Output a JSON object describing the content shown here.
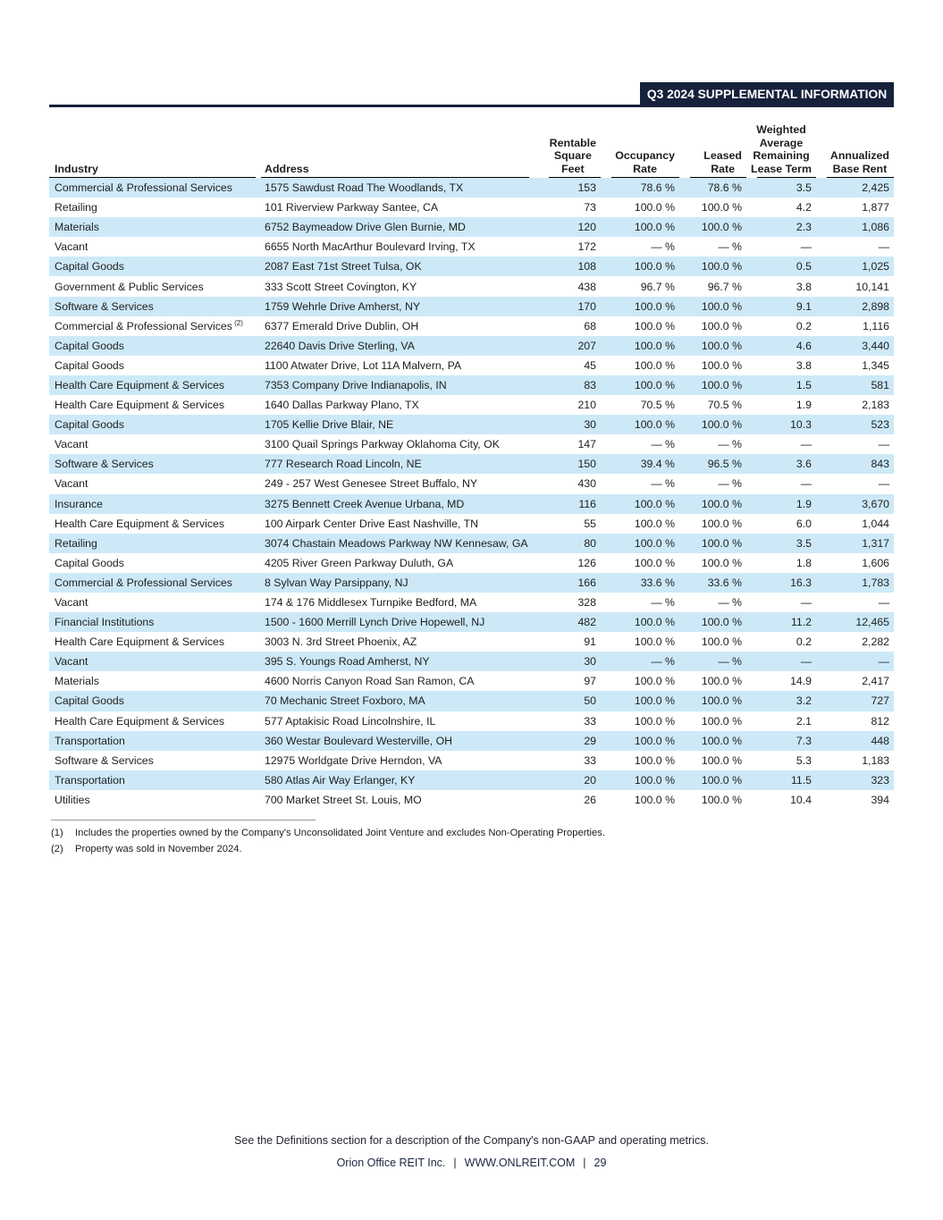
{
  "header": {
    "banner": "Q3 2024 SUPPLEMENTAL INFORMATION"
  },
  "colors": {
    "navy": "#16213c",
    "row_stripe": "#cde9f8"
  },
  "table": {
    "headers": [
      {
        "lines": [
          "Industry"
        ],
        "align": "left"
      },
      {
        "lines": [
          "Address"
        ],
        "align": "left"
      },
      {
        "lines": [
          "Rentable",
          "Square",
          "Feet"
        ],
        "align": "right"
      },
      {
        "lines": [
          "Occupancy",
          "Rate"
        ],
        "align": "right"
      },
      {
        "lines": [
          "Leased",
          "Rate"
        ],
        "align": "right"
      },
      {
        "lines": [
          "Weighted",
          "Average",
          "Remaining",
          "Lease Term"
        ],
        "align": "right"
      },
      {
        "lines": [
          "Annualized",
          "Base Rent"
        ],
        "align": "right"
      }
    ],
    "rows": [
      {
        "industry": "Commercial & Professional Services",
        "sup": "",
        "address": "1575 Sawdust Road The Woodlands, TX",
        "sqft": "153",
        "occupancy": "78.6 %",
        "leased": "78.6 %",
        "walt": "3.5",
        "abr": "2,425"
      },
      {
        "industry": "Retailing",
        "sup": "",
        "address": "101 Riverview Parkway Santee, CA",
        "sqft": "73",
        "occupancy": "100.0 %",
        "leased": "100.0 %",
        "walt": "4.2",
        "abr": "1,877"
      },
      {
        "industry": "Materials",
        "sup": "",
        "address": "6752 Baymeadow Drive Glen Burnie, MD",
        "sqft": "120",
        "occupancy": "100.0 %",
        "leased": "100.0 %",
        "walt": "2.3",
        "abr": "1,086"
      },
      {
        "industry": "Vacant",
        "sup": "",
        "address": "6655 North MacArthur Boulevard Irving, TX",
        "sqft": "172",
        "occupancy": "— %",
        "leased": "— %",
        "walt": "—",
        "abr": "—"
      },
      {
        "industry": "Capital Goods",
        "sup": "",
        "address": "2087 East 71st Street Tulsa, OK",
        "sqft": "108",
        "occupancy": "100.0 %",
        "leased": "100.0 %",
        "walt": "0.5",
        "abr": "1,025"
      },
      {
        "industry": "Government & Public Services",
        "sup": "",
        "address": "333 Scott Street Covington, KY",
        "sqft": "438",
        "occupancy": "96.7 %",
        "leased": "96.7 %",
        "walt": "3.8",
        "abr": "10,141"
      },
      {
        "industry": "Software & Services",
        "sup": "",
        "address": "1759 Wehrle Drive Amherst, NY",
        "sqft": "170",
        "occupancy": "100.0 %",
        "leased": "100.0 %",
        "walt": "9.1",
        "abr": "2,898"
      },
      {
        "industry": "Commercial & Professional Services",
        "sup": "(2)",
        "address": "6377 Emerald Drive Dublin, OH",
        "sqft": "68",
        "occupancy": "100.0 %",
        "leased": "100.0 %",
        "walt": "0.2",
        "abr": "1,116"
      },
      {
        "industry": "Capital Goods",
        "sup": "",
        "address": "22640 Davis Drive Sterling, VA",
        "sqft": "207",
        "occupancy": "100.0 %",
        "leased": "100.0 %",
        "walt": "4.6",
        "abr": "3,440"
      },
      {
        "industry": "Capital Goods",
        "sup": "",
        "address": "1100 Atwater Drive, Lot 11A Malvern, PA",
        "sqft": "45",
        "occupancy": "100.0 %",
        "leased": "100.0 %",
        "walt": "3.8",
        "abr": "1,345"
      },
      {
        "industry": "Health Care Equipment & Services",
        "sup": "",
        "address": "7353 Company Drive Indianapolis, IN",
        "sqft": "83",
        "occupancy": "100.0 %",
        "leased": "100.0 %",
        "walt": "1.5",
        "abr": "581"
      },
      {
        "industry": "Health Care Equipment & Services",
        "sup": "",
        "address": "1640 Dallas Parkway Plano, TX",
        "sqft": "210",
        "occupancy": "70.5 %",
        "leased": "70.5 %",
        "walt": "1.9",
        "abr": "2,183"
      },
      {
        "industry": "Capital Goods",
        "sup": "",
        "address": "1705 Kellie Drive Blair, NE",
        "sqft": "30",
        "occupancy": "100.0 %",
        "leased": "100.0 %",
        "walt": "10.3",
        "abr": "523"
      },
      {
        "industry": "Vacant",
        "sup": "",
        "address": "3100 Quail Springs Parkway Oklahoma City, OK",
        "sqft": "147",
        "occupancy": "— %",
        "leased": "— %",
        "walt": "—",
        "abr": "—"
      },
      {
        "industry": "Software & Services",
        "sup": "",
        "address": "777 Research Road Lincoln, NE",
        "sqft": "150",
        "occupancy": "39.4 %",
        "leased": "96.5 %",
        "walt": "3.6",
        "abr": "843"
      },
      {
        "industry": "Vacant",
        "sup": "",
        "address": "249 - 257 West Genesee Street Buffalo, NY",
        "sqft": "430",
        "occupancy": "— %",
        "leased": "— %",
        "walt": "—",
        "abr": "—"
      },
      {
        "industry": "Insurance",
        "sup": "",
        "address": "3275 Bennett Creek Avenue Urbana, MD",
        "sqft": "116",
        "occupancy": "100.0 %",
        "leased": "100.0 %",
        "walt": "1.9",
        "abr": "3,670"
      },
      {
        "industry": "Health Care Equipment & Services",
        "sup": "",
        "address": "100 Airpark Center Drive East Nashville, TN",
        "sqft": "55",
        "occupancy": "100.0 %",
        "leased": "100.0 %",
        "walt": "6.0",
        "abr": "1,044"
      },
      {
        "industry": "Retailing",
        "sup": "",
        "address": "3074 Chastain Meadows Parkway NW Kennesaw, GA",
        "sqft": "80",
        "occupancy": "100.0 %",
        "leased": "100.0 %",
        "walt": "3.5",
        "abr": "1,317"
      },
      {
        "industry": "Capital Goods",
        "sup": "",
        "address": "4205 River Green Parkway Duluth, GA",
        "sqft": "126",
        "occupancy": "100.0 %",
        "leased": "100.0 %",
        "walt": "1.8",
        "abr": "1,606"
      },
      {
        "industry": "Commercial & Professional Services",
        "sup": "",
        "address": "8 Sylvan Way Parsippany, NJ",
        "sqft": "166",
        "occupancy": "33.6 %",
        "leased": "33.6 %",
        "walt": "16.3",
        "abr": "1,783"
      },
      {
        "industry": "Vacant",
        "sup": "",
        "address": "174 & 176 Middlesex Turnpike Bedford, MA",
        "sqft": "328",
        "occupancy": "— %",
        "leased": "— %",
        "walt": "—",
        "abr": "—"
      },
      {
        "industry": "Financial Institutions",
        "sup": "",
        "address": "1500 - 1600 Merrill Lynch Drive Hopewell, NJ",
        "sqft": "482",
        "occupancy": "100.0 %",
        "leased": "100.0 %",
        "walt": "11.2",
        "abr": "12,465"
      },
      {
        "industry": "Health Care Equipment & Services",
        "sup": "",
        "address": "3003 N. 3rd Street Phoenix, AZ",
        "sqft": "91",
        "occupancy": "100.0 %",
        "leased": "100.0 %",
        "walt": "0.2",
        "abr": "2,282"
      },
      {
        "industry": "Vacant",
        "sup": "",
        "address": "395 S. Youngs Road Amherst, NY",
        "sqft": "30",
        "occupancy": "— %",
        "leased": "— %",
        "walt": "—",
        "abr": "—"
      },
      {
        "industry": "Materials",
        "sup": "",
        "address": "4600 Norris Canyon Road San Ramon, CA",
        "sqft": "97",
        "occupancy": "100.0 %",
        "leased": "100.0 %",
        "walt": "14.9",
        "abr": "2,417"
      },
      {
        "industry": "Capital Goods",
        "sup": "",
        "address": "70 Mechanic Street Foxboro, MA",
        "sqft": "50",
        "occupancy": "100.0 %",
        "leased": "100.0 %",
        "walt": "3.2",
        "abr": "727"
      },
      {
        "industry": "Health Care Equipment & Services",
        "sup": "",
        "address": "577 Aptakisic Road Lincolnshire, IL",
        "sqft": "33",
        "occupancy": "100.0 %",
        "leased": "100.0 %",
        "walt": "2.1",
        "abr": "812"
      },
      {
        "industry": "Transportation",
        "sup": "",
        "address": "360 Westar Boulevard Westerville, OH",
        "sqft": "29",
        "occupancy": "100.0 %",
        "leased": "100.0 %",
        "walt": "7.3",
        "abr": "448"
      },
      {
        "industry": "Software & Services",
        "sup": "",
        "address": "12975 Worldgate Drive Herndon, VA",
        "sqft": "33",
        "occupancy": "100.0 %",
        "leased": "100.0 %",
        "walt": "5.3",
        "abr": "1,183"
      },
      {
        "industry": "Transportation",
        "sup": "",
        "address": "580 Atlas Air Way Erlanger, KY",
        "sqft": "20",
        "occupancy": "100.0 %",
        "leased": "100.0 %",
        "walt": "11.5",
        "abr": "323"
      },
      {
        "industry": "Utilities",
        "sup": "",
        "address": "700 Market Street St. Louis, MO",
        "sqft": "26",
        "occupancy": "100.0 %",
        "leased": "100.0 %",
        "walt": "10.4",
        "abr": "394"
      }
    ]
  },
  "footnotes": [
    {
      "marker": "(1)",
      "text": "Includes the properties owned by the Company's Unconsolidated Joint Venture and excludes Non-Operating Properties."
    },
    {
      "marker": "(2)",
      "text": "Property was sold in November 2024."
    }
  ],
  "footer": {
    "note": "See the Definitions section for a description of the Company's non-GAAP and operating metrics.",
    "company": "Orion Office REIT Inc.",
    "website": "WWW.ONLREIT.COM",
    "page_number": "29",
    "separator": "|"
  }
}
